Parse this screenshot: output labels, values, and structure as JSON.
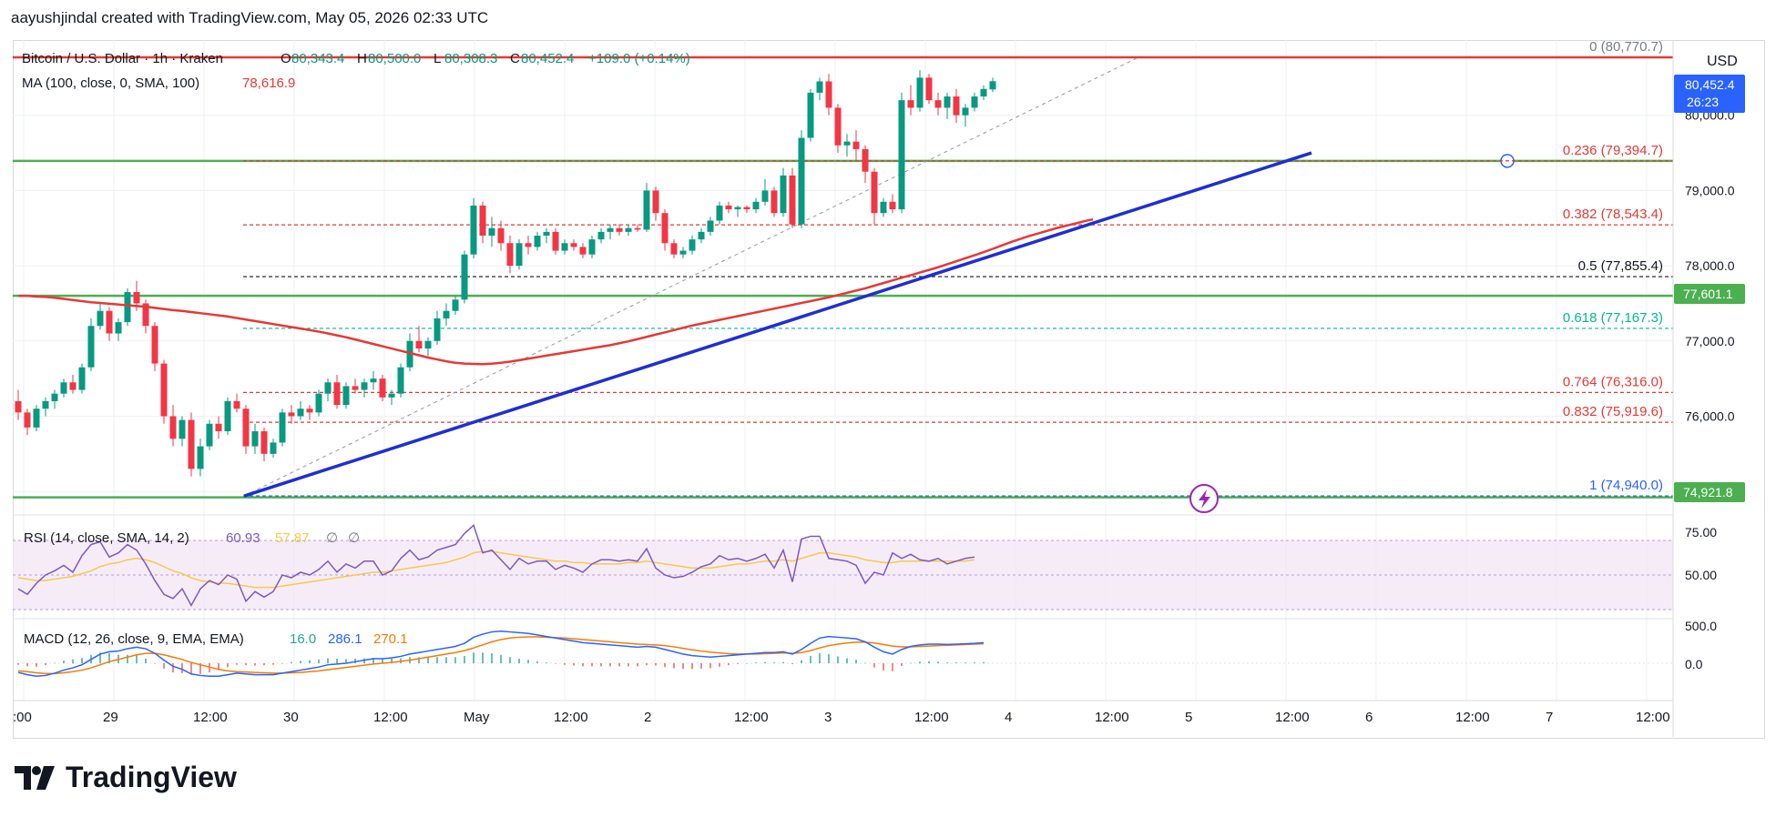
{
  "header": {
    "caption": "aayushjindal created with TradingView.com, May 05, 2026 02:33 UTC"
  },
  "currency": "USD",
  "brand": "TradingView",
  "legend": {
    "symbol": "Bitcoin / U.S. Dollar · 1h · Kraken",
    "ohlc": [
      {
        "k": "O",
        "v": "80,343.4"
      },
      {
        "k": "H",
        "v": "80,500.0"
      },
      {
        "k": "L",
        "v": "80,308.3"
      },
      {
        "k": "C",
        "v": "80,452.4"
      }
    ],
    "change": "+109.0 (+0.14%)",
    "ma_label": "MA (100, close, 0, SMA, 100)",
    "ma_value": "78,616.9"
  },
  "price_badges": {
    "last": "80,452.4",
    "countdown": "26:23",
    "level_a": "77,601.1",
    "level_b": "74,921.8"
  },
  "rsi": {
    "label": "RSI (14, close, SMA, 14, 2)",
    "v1": "60.93",
    "v2": "57.87",
    "v3": "∅",
    "v4": "∅",
    "ticks": [
      "75.00",
      "50.00"
    ]
  },
  "macd": {
    "label": "MACD (12, 26, close, 9, EMA, EMA)",
    "v1": "16.0",
    "v2": "286.1",
    "v3": "270.1",
    "ticks": [
      "500.0",
      "0.0"
    ]
  },
  "colors": {
    "up": "#089981",
    "down": "#f23645",
    "ma": "#e53935",
    "trend": "#1e2fd1",
    "support": "#4caf50",
    "resistance": "#e53935",
    "fib_red": "#e53935",
    "fib_teal": "#00b894",
    "fib_blue": "#2962ff",
    "rsi": "#7e57c2",
    "rsi_ma": "#f7c948",
    "macd": "#2962ff",
    "signal": "#f57c00"
  },
  "chart_data": {
    "type": "candlestick",
    "ylim": [
      74700,
      81000
    ],
    "y_ticks": [
      "80,000.0",
      "79,000.0",
      "78,000.0",
      "77,000.0",
      "76,000.0",
      "75,000.0"
    ],
    "y_tick_values": [
      80000,
      79000,
      78000,
      77000,
      76000,
      75000
    ],
    "x_ticks": [
      ":00",
      "29",
      "12:00",
      "30",
      "12:00",
      "May",
      "12:00",
      "2",
      "12:00",
      "3",
      "12:00",
      "4",
      "12:00",
      "5",
      "12:00",
      "6",
      "12:00",
      "7",
      "12:00"
    ],
    "fib_levels": [
      {
        "label": "0",
        "value": "(80,770.7)",
        "price": 80770.7,
        "color": "#787b86"
      },
      {
        "label": "0.236",
        "value": "(79,394.7)",
        "price": 79394.7,
        "color": "#e53935"
      },
      {
        "label": "0.382",
        "value": "(78,543.4)",
        "price": 78543.4,
        "color": "#e53935"
      },
      {
        "label": "0.5",
        "value": "(77,855.4)",
        "price": 77855.4,
        "color": "#131722"
      },
      {
        "label": "0.618",
        "value": "(77,167.3)",
        "price": 77167.3,
        "color": "#00b894"
      },
      {
        "label": "0.764",
        "value": "(76,316.0)",
        "price": 76316.0,
        "color": "#e53935"
      },
      {
        "label": "0.832",
        "value": "(75,919.6)",
        "price": 75919.6,
        "color": "#e53935"
      },
      {
        "label": "1",
        "value": "(74,940.0)",
        "price": 74940.0,
        "color": "#2962ff"
      }
    ],
    "horizontal_lines": [
      {
        "name": "resistance",
        "price": 80770
      },
      {
        "name": "support-upper",
        "price": 79394
      },
      {
        "name": "support-mid",
        "price": 77601
      },
      {
        "name": "support-lower",
        "price": 74922
      }
    ],
    "trendline": {
      "from": [
        0,
        74940
      ],
      "to": [
        116,
        79500
      ]
    },
    "ma_series": [
      77600,
      77600,
      77590,
      77585,
      77575,
      77560,
      77545,
      77530,
      77515,
      77505,
      77495,
      77485,
      77475,
      77465,
      77455,
      77440,
      77425,
      77410,
      77400,
      77385,
      77370,
      77355,
      77340,
      77325,
      77305,
      77285,
      77265,
      77245,
      77225,
      77205,
      77185,
      77165,
      77145,
      77125,
      77100,
      77075,
      77050,
      77020,
      76990,
      76960,
      76930,
      76900,
      76870,
      76840,
      76810,
      76780,
      76755,
      76730,
      76710,
      76700,
      76695,
      76692,
      76698,
      76710,
      76725,
      76745,
      76765,
      76785,
      76805,
      76825,
      76845,
      76865,
      76885,
      76905,
      76925,
      76945,
      76970,
      76995,
      77025,
      77055,
      77085,
      77115,
      77145,
      77175,
      77205,
      77230,
      77255,
      77280,
      77305,
      77330,
      77355,
      77380,
      77405,
      77430,
      77455,
      77480,
      77505,
      77530,
      77555,
      77580,
      77610,
      77640,
      77670,
      77700,
      77735,
      77770,
      77805,
      77840,
      77875,
      77910,
      77945,
      77980,
      78020,
      78060,
      78100,
      78140,
      78180,
      78225,
      78270,
      78315,
      78355,
      78395,
      78430,
      78465,
      78500,
      78530,
      78560,
      78590,
      78617
    ],
    "candles": [
      [
        76200,
        76350,
        75950,
        76050
      ],
      [
        76050,
        76100,
        75750,
        75850
      ],
      [
        75850,
        76150,
        75800,
        76100
      ],
      [
        76100,
        76250,
        76000,
        76200
      ],
      [
        76200,
        76350,
        76100,
        76300
      ],
      [
        76300,
        76500,
        76250,
        76450
      ],
      [
        76450,
        76550,
        76300,
        76350
      ],
      [
        76350,
        76700,
        76300,
        76650
      ],
      [
        76650,
        77300,
        76600,
        77200
      ],
      [
        77200,
        77500,
        77150,
        77400
      ],
      [
        77400,
        77450,
        77000,
        77100
      ],
      [
        77100,
        77300,
        77000,
        77250
      ],
      [
        77250,
        77700,
        77200,
        77650
      ],
      [
        77650,
        77800,
        77400,
        77500
      ],
      [
        77500,
        77550,
        77100,
        77200
      ],
      [
        77200,
        77250,
        76600,
        76700
      ],
      [
        76700,
        76750,
        75900,
        76000
      ],
      [
        76000,
        76150,
        75600,
        75700
      ],
      [
        75700,
        76000,
        75600,
        75950
      ],
      [
        75950,
        76050,
        75200,
        75300
      ],
      [
        75300,
        75700,
        75200,
        75600
      ],
      [
        75600,
        75950,
        75550,
        75900
      ],
      [
        75900,
        76000,
        75700,
        75800
      ],
      [
        75800,
        76250,
        75750,
        76200
      ],
      [
        76200,
        76300,
        76050,
        76100
      ],
      [
        76100,
        76150,
        75500,
        75600
      ],
      [
        75600,
        75900,
        75500,
        75800
      ],
      [
        75800,
        75850,
        75400,
        75500
      ],
      [
        75500,
        75700,
        75450,
        75650
      ],
      [
        75650,
        76100,
        75600,
        76050
      ],
      [
        76050,
        76150,
        75900,
        76000
      ],
      [
        76000,
        76200,
        75950,
        76100
      ],
      [
        76100,
        76150,
        75950,
        76050
      ],
      [
        76050,
        76350,
        76000,
        76300
      ],
      [
        76300,
        76500,
        76200,
        76450
      ],
      [
        76450,
        76550,
        76100,
        76150
      ],
      [
        76150,
        76450,
        76100,
        76400
      ],
      [
        76400,
        76500,
        76300,
        76350
      ],
      [
        76350,
        76500,
        76250,
        76450
      ],
      [
        76450,
        76600,
        76350,
        76500
      ],
      [
        76500,
        76550,
        76200,
        76250
      ],
      [
        76250,
        76350,
        76150,
        76300
      ],
      [
        76300,
        76700,
        76250,
        76650
      ],
      [
        76650,
        77100,
        76600,
        77000
      ],
      [
        77000,
        77200,
        76850,
        76900
      ],
      [
        76900,
        77050,
        76800,
        77000
      ],
      [
        77000,
        77400,
        76950,
        77300
      ],
      [
        77300,
        77500,
        77200,
        77400
      ],
      [
        77400,
        77600,
        77350,
        77550
      ],
      [
        77550,
        78200,
        77500,
        78150
      ],
      [
        78150,
        78900,
        78100,
        78800
      ],
      [
        78800,
        78850,
        78300,
        78400
      ],
      [
        78400,
        78650,
        78250,
        78500
      ],
      [
        78500,
        78600,
        78200,
        78300
      ],
      [
        78300,
        78400,
        77900,
        78000
      ],
      [
        78000,
        78350,
        77950,
        78300
      ],
      [
        78300,
        78400,
        78150,
        78250
      ],
      [
        78250,
        78450,
        78200,
        78400
      ],
      [
        78400,
        78500,
        78300,
        78450
      ],
      [
        78450,
        78500,
        78150,
        78200
      ],
      [
        78200,
        78350,
        78150,
        78300
      ],
      [
        78300,
        78350,
        78200,
        78250
      ],
      [
        78250,
        78300,
        78100,
        78150
      ],
      [
        78150,
        78400,
        78100,
        78350
      ],
      [
        78350,
        78500,
        78300,
        78450
      ],
      [
        78450,
        78550,
        78350,
        78500
      ],
      [
        78500,
        78550,
        78400,
        78450
      ],
      [
        78450,
        78550,
        78400,
        78500
      ],
      [
        78500,
        78550,
        78450,
        78480
      ],
      [
        78480,
        79100,
        78450,
        79000
      ],
      [
        79000,
        79050,
        78600,
        78700
      ],
      [
        78700,
        78750,
        78200,
        78300
      ],
      [
        78300,
        78350,
        78100,
        78150
      ],
      [
        78150,
        78250,
        78100,
        78200
      ],
      [
        78200,
        78400,
        78150,
        78350
      ],
      [
        78350,
        78500,
        78300,
        78450
      ],
      [
        78450,
        78650,
        78400,
        78600
      ],
      [
        78600,
        78850,
        78550,
        78800
      ],
      [
        78800,
        78850,
        78700,
        78750
      ],
      [
        78750,
        78800,
        78650,
        78780
      ],
      [
        78780,
        78800,
        78700,
        78750
      ],
      [
        78750,
        78900,
        78700,
        78850
      ],
      [
        78850,
        79150,
        78800,
        79000
      ],
      [
        79000,
        79050,
        78650,
        78700
      ],
      [
        78700,
        79300,
        78650,
        79200
      ],
      [
        79200,
        79300,
        78500,
        78550
      ],
      [
        78550,
        79800,
        78500,
        79700
      ],
      [
        79700,
        80350,
        79650,
        80300
      ],
      [
        80300,
        80500,
        80200,
        80450
      ],
      [
        80450,
        80550,
        80000,
        80100
      ],
      [
        80100,
        80150,
        79500,
        79600
      ],
      [
        79600,
        79750,
        79450,
        79650
      ],
      [
        79650,
        79800,
        79400,
        79550
      ],
      [
        79550,
        79600,
        79100,
        79250
      ],
      [
        79250,
        79300,
        78550,
        78700
      ],
      [
        78700,
        78900,
        78650,
        78850
      ],
      [
        78850,
        78950,
        78700,
        78750
      ],
      [
        78750,
        80300,
        78700,
        80200
      ],
      [
        80200,
        80400,
        80000,
        80100
      ],
      [
        80100,
        80600,
        80050,
        80500
      ],
      [
        80500,
        80550,
        80150,
        80200
      ],
      [
        80200,
        80300,
        80000,
        80100
      ],
      [
        80100,
        80300,
        79950,
        80250
      ],
      [
        80250,
        80350,
        79900,
        80000
      ],
      [
        80000,
        80150,
        79850,
        80100
      ],
      [
        80100,
        80300,
        80050,
        80250
      ],
      [
        80250,
        80400,
        80200,
        80350
      ],
      [
        80343.4,
        80500,
        80308.3,
        80452.4
      ]
    ],
    "rsi_series": [
      40,
      36,
      44,
      50,
      53,
      57,
      52,
      64,
      72,
      74,
      63,
      66,
      72,
      68,
      58,
      46,
      36,
      33,
      40,
      28,
      40,
      46,
      43,
      50,
      47,
      31,
      38,
      34,
      38,
      50,
      48,
      52,
      50,
      54,
      60,
      52,
      58,
      55,
      60,
      60,
      50,
      53,
      62,
      68,
      61,
      63,
      68,
      70,
      72,
      80,
      86,
      66,
      68,
      61,
      54,
      62,
      58,
      60,
      60,
      54,
      57,
      55,
      52,
      58,
      61,
      61,
      60,
      61,
      60,
      69,
      55,
      50,
      48,
      49,
      52,
      56,
      58,
      64,
      61,
      62,
      60,
      62,
      65,
      55,
      68,
      45,
      76,
      78,
      78,
      62,
      61,
      60,
      57,
      44,
      52,
      50,
      66,
      62,
      65,
      61,
      60,
      62,
      58,
      60,
      62,
      63
    ],
    "rsi_ma_series": [
      48,
      47,
      46,
      46,
      47,
      48,
      49,
      51,
      53,
      56,
      58,
      59,
      61,
      62,
      61,
      59,
      56,
      53,
      51,
      48,
      46,
      45,
      44,
      44,
      43,
      42,
      41,
      41,
      41,
      42,
      43,
      44,
      45,
      46,
      47,
      48,
      49,
      50,
      51,
      52,
      52,
      53,
      54,
      55,
      56,
      57,
      58,
      59,
      61,
      63,
      66,
      67,
      67,
      66,
      65,
      64,
      63,
      62,
      61,
      60,
      60,
      59,
      59,
      58,
      58,
      58,
      58,
      59,
      59,
      60,
      59,
      58,
      57,
      56,
      55,
      55,
      55,
      56,
      57,
      58,
      58,
      59,
      60,
      60,
      61,
      60,
      62,
      64,
      66,
      66,
      65,
      64,
      63,
      61,
      60,
      59,
      59,
      60,
      60,
      60,
      60,
      60,
      60,
      60,
      60,
      61
    ],
    "macd_series": [
      -120,
      -150,
      -170,
      -160,
      -130,
      -90,
      -60,
      -20,
      50,
      120,
      150,
      160,
      190,
      210,
      190,
      130,
      40,
      -40,
      -80,
      -140,
      -160,
      -170,
      -170,
      -150,
      -130,
      -140,
      -150,
      -150,
      -150,
      -130,
      -110,
      -90,
      -70,
      -50,
      -20,
      -10,
      0,
      20,
      40,
      60,
      60,
      70,
      90,
      120,
      140,
      160,
      180,
      200,
      220,
      260,
      340,
      380,
      410,
      420,
      410,
      400,
      390,
      370,
      350,
      330,
      310,
      290,
      270,
      260,
      250,
      240,
      230,
      220,
      210,
      220,
      210,
      180,
      150,
      120,
      100,
      90,
      80,
      90,
      100,
      110,
      120,
      130,
      140,
      140,
      150,
      120,
      180,
      260,
      330,
      350,
      340,
      330,
      320,
      280,
      210,
      150,
      120,
      180,
      220,
      240,
      250,
      250,
      245,
      250,
      255,
      260,
      270
    ],
    "signal_series": [
      -100,
      -110,
      -125,
      -135,
      -135,
      -125,
      -110,
      -90,
      -60,
      -20,
      20,
      50,
      80,
      110,
      130,
      130,
      110,
      80,
      50,
      10,
      -20,
      -50,
      -80,
      -100,
      -110,
      -115,
      -120,
      -125,
      -130,
      -130,
      -125,
      -120,
      -110,
      -100,
      -85,
      -70,
      -55,
      -40,
      -25,
      -10,
      0,
      10,
      25,
      40,
      60,
      80,
      100,
      120,
      140,
      165,
      200,
      240,
      280,
      310,
      330,
      340,
      345,
      345,
      340,
      335,
      330,
      320,
      310,
      300,
      290,
      280,
      270,
      260,
      250,
      245,
      240,
      230,
      215,
      195,
      175,
      160,
      145,
      135,
      125,
      120,
      120,
      120,
      125,
      130,
      135,
      130,
      140,
      165,
      200,
      230,
      250,
      265,
      275,
      275,
      265,
      245,
      225,
      215,
      215,
      220,
      225,
      230,
      235,
      240,
      245,
      250,
      255
    ]
  }
}
